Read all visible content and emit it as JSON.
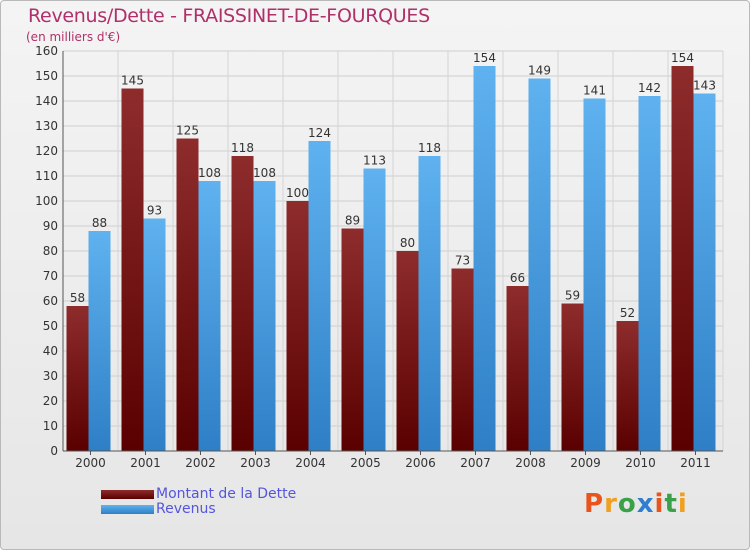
{
  "title": "Revenus/Dette - FRAISSINET-DE-FOURQUES",
  "subtitle": "(en milliers d'€)",
  "logo": "Proxiti",
  "colors": {
    "debt_top": "#8e2c2c",
    "debt_bottom": "#5a0000",
    "revenue_top": "#5fb2ef",
    "revenue_bottom": "#2e7fc6",
    "title": "#b0306a",
    "legend_text": "#5555dd"
  },
  "chart_data": {
    "type": "bar",
    "categories": [
      "2000",
      "2001",
      "2002",
      "2003",
      "2004",
      "2005",
      "2006",
      "2007",
      "2008",
      "2009",
      "2010",
      "2011"
    ],
    "series": [
      {
        "name": "Montant de la Dette",
        "values": [
          58,
          145,
          125,
          118,
          100,
          89,
          80,
          73,
          66,
          59,
          52,
          154
        ]
      },
      {
        "name": "Revenus",
        "values": [
          88,
          93,
          108,
          108,
          124,
          113,
          118,
          154,
          149,
          141,
          142,
          143
        ]
      }
    ],
    "yticks": [
      "0",
      "10",
      "20",
      "30",
      "40",
      "50",
      "60",
      "70",
      "80",
      "90",
      "100",
      "110",
      "120",
      "130",
      "140",
      "150",
      "160"
    ],
    "ylim": [
      0,
      160
    ],
    "grid": true,
    "legend": "bottom-left"
  }
}
